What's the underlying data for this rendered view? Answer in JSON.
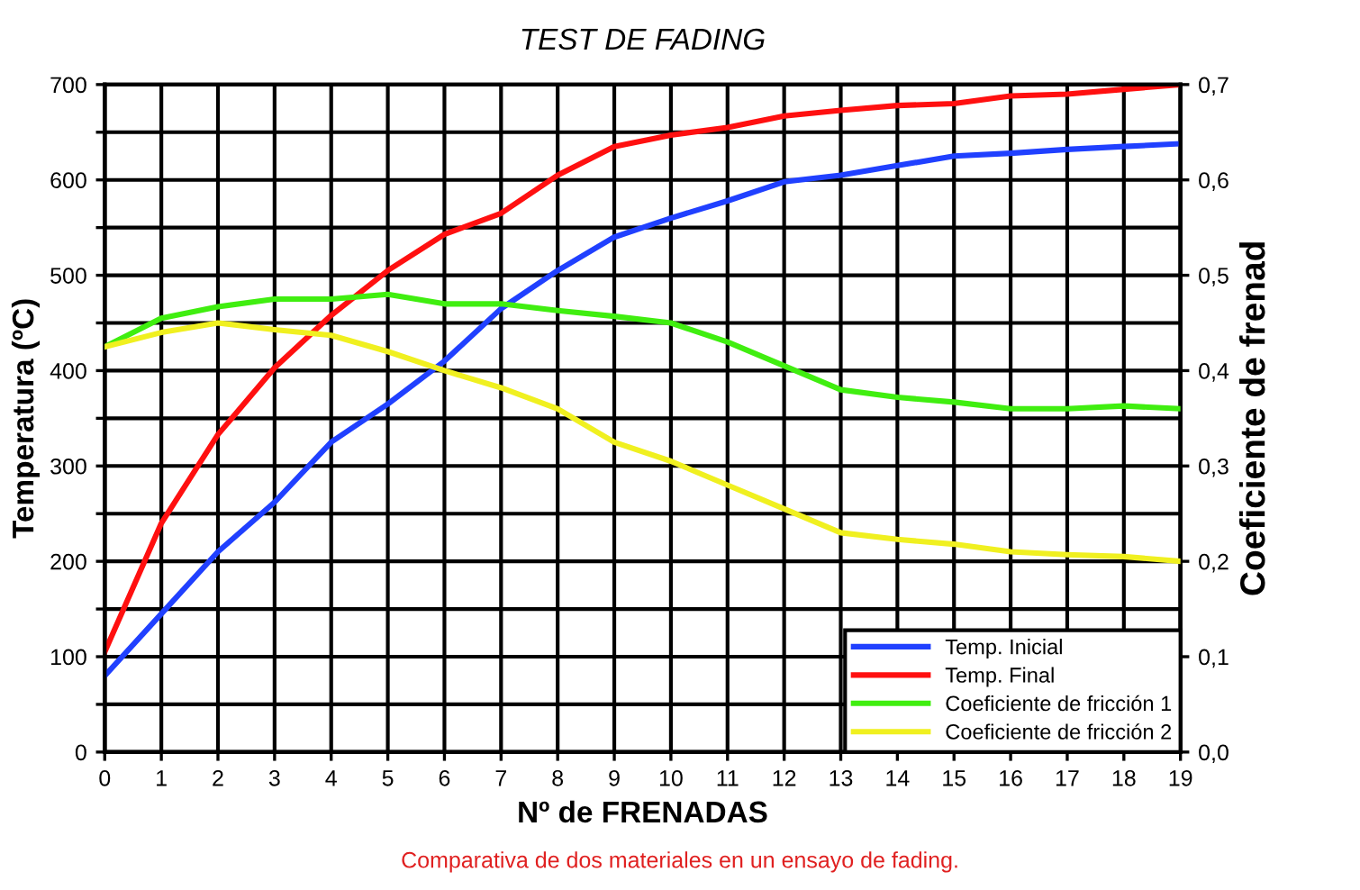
{
  "chart_data": {
    "type": "line",
    "title": "TEST DE FADING",
    "xlabel": "Nº de FRENADAS",
    "ylabel": "Temperatura (ºC)",
    "y2label": "Coeficiente de frenad",
    "x": [
      0,
      1,
      2,
      3,
      4,
      5,
      6,
      7,
      8,
      9,
      10,
      11,
      12,
      13,
      14,
      15,
      16,
      17,
      18,
      19
    ],
    "series": [
      {
        "name": "Temp. Inicial",
        "color": "#2040ff",
        "values": [
          80,
          145,
          210,
          262,
          325,
          365,
          410,
          465,
          505,
          540,
          560,
          578,
          598,
          605,
          615,
          625,
          628,
          632,
          635,
          638
        ]
      },
      {
        "name": "Temp. Final",
        "color": "#ff1010",
        "values": [
          105,
          240,
          333,
          403,
          458,
          505,
          543,
          565,
          605,
          635,
          647,
          655,
          667,
          673,
          678,
          680,
          688,
          690,
          695,
          700
        ]
      },
      {
        "name": "Coeficiente de fricción 1",
        "color": "#40ee10",
        "axis": "y2",
        "values": [
          0.425,
          0.455,
          0.467,
          0.475,
          0.475,
          0.48,
          0.47,
          0.47,
          0.463,
          0.457,
          0.45,
          0.43,
          0.405,
          0.38,
          0.372,
          0.367,
          0.36,
          0.36,
          0.363,
          0.36
        ]
      },
      {
        "name": "Coeficiente de fricción 2",
        "color": "#f0f020",
        "axis": "y2",
        "values": [
          0.425,
          0.44,
          0.45,
          0.443,
          0.437,
          0.42,
          0.4,
          0.382,
          0.36,
          0.325,
          0.305,
          0.28,
          0.255,
          0.23,
          0.223,
          0.218,
          0.21,
          0.207,
          0.205,
          0.2
        ]
      }
    ],
    "xlim": [
      0,
      19
    ],
    "xticks": [
      0,
      1,
      2,
      3,
      4,
      5,
      6,
      7,
      8,
      9,
      10,
      11,
      12,
      13,
      14,
      15,
      16,
      17,
      18,
      19
    ],
    "ylim": [
      0,
      700
    ],
    "yticks": [
      0,
      {
        "value": 50,
        "label": null
      },
      100,
      {
        "value": 150,
        "label": null
      },
      200,
      {
        "value": 250,
        "label": null
      },
      300,
      {
        "value": 350,
        "label": null
      },
      400,
      {
        "value": 450,
        "label": null
      },
      500,
      {
        "value": 550,
        "label": null
      },
      600,
      {
        "value": 650,
        "label": null
      },
      700
    ],
    "y2lim": [
      0,
      0.7
    ],
    "y2ticks": [
      {
        "value": 0,
        "label": "0,0"
      },
      {
        "value": 0.1,
        "label": "0,1"
      },
      {
        "value": 0.2,
        "label": "0,2"
      },
      {
        "value": 0.3,
        "label": "0,3"
      },
      {
        "value": 0.4,
        "label": "0,4"
      },
      {
        "value": 0.5,
        "label": "0,5"
      },
      {
        "value": 0.6,
        "label": "0,6"
      },
      {
        "value": 0.7,
        "label": "0,7"
      }
    ],
    "grid": true,
    "legend": "bottom right",
    "line_style": "solid",
    "marker": "none",
    "annotations": [
      "Comparativa de dos materiales en un ensayo de fading."
    ]
  }
}
